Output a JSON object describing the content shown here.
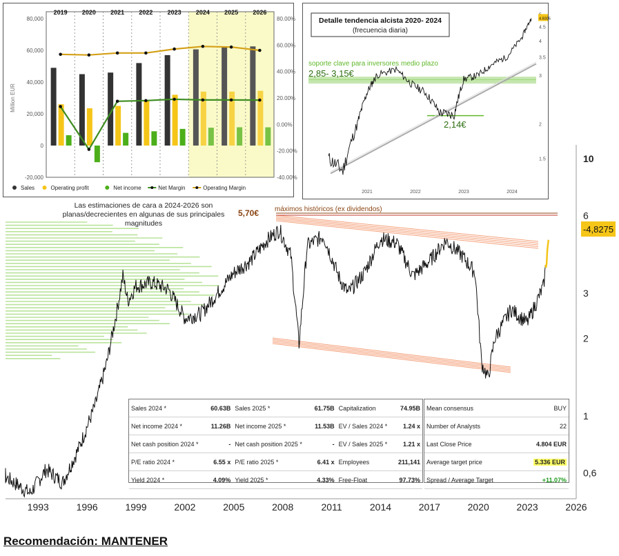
{
  "main_chart": {
    "x_tick_labels": [
      "1993",
      "1996",
      "1999",
      "2002",
      "2005",
      "2008",
      "2011",
      "2014",
      "2017",
      "2020",
      "2023",
      "2026"
    ],
    "y_tick_labels": [
      "0,6",
      "1",
      "2",
      "3",
      "6",
      "10"
    ],
    "last_price_label": "-4,8275",
    "ath_label": "5,70€",
    "ath_note": "máximos históricos (ex dividendos)",
    "note": "Las estimaciones de cara a 2024-2026 son planas/decrecientes en algunas de sus principales magnitudes",
    "recommendation": "Recomendación: MANTENER"
  },
  "chart_data": [
    {
      "type": "line",
      "title": "",
      "scale": "log",
      "x": [
        1990.0,
        1991.0,
        1992.5,
        1993.5,
        1994.5,
        1995.5,
        1996.5,
        1997.2,
        1997.8,
        1998.2,
        1998.5,
        1999.0,
        2000.0,
        2001.0,
        2002.0,
        2003.0,
        2004.0,
        2005.0,
        2006.0,
        2007.0,
        2007.8,
        2008.5,
        2009.0,
        2009.5,
        2010.5,
        2011.5,
        2012.0,
        2013.0,
        2014.0,
        2015.0,
        2016.0,
        2017.0,
        2018.0,
        2019.0,
        2019.8,
        2020.2,
        2020.6,
        2021.0,
        2022.0,
        2023.0,
        2024.0,
        2024.3
      ],
      "y": [
        0.6,
        0.58,
        0.5,
        0.62,
        0.55,
        0.75,
        1.1,
        1.6,
        2.5,
        3.5,
        2.8,
        3.2,
        3.3,
        3.1,
        2.4,
        2.5,
        3.0,
        3.6,
        4.0,
        4.8,
        5.3,
        4.2,
        1.9,
        4.6,
        5.0,
        3.4,
        3.0,
        3.6,
        4.9,
        4.7,
        3.5,
        4.0,
        4.8,
        4.2,
        3.6,
        1.6,
        1.4,
        2.0,
        2.6,
        2.3,
        3.2,
        4.83
      ],
      "ylim": [
        0.5,
        10
      ],
      "xlim": [
        1991,
        2026
      ]
    },
    {
      "type": "bar",
      "title": "",
      "categories": [
        "2019",
        "2020",
        "2021",
        "2022",
        "2023",
        "2024",
        "2025",
        "2026"
      ],
      "ylabel": "Million EUR",
      "ylim": [
        -20000,
        80000
      ],
      "y2lim": [
        -40,
        80
      ],
      "y_ticks": [
        "80,000",
        "60,000",
        "40,000",
        "20,000",
        "0",
        "-20,000"
      ],
      "y2_ticks": [
        "80.00%",
        "60.00%",
        "40.00%",
        "20.00%",
        "0.00%",
        "-20.00%",
        "-40.00%"
      ],
      "estimate_start": "2024",
      "series": [
        {
          "name": "Sales",
          "color": "#333333",
          "values": [
            49000,
            45000,
            46000,
            52000,
            57000,
            60630,
            61750,
            62500
          ]
        },
        {
          "name": "Operating profit",
          "color": "#f5c518",
          "values": [
            26000,
            23500,
            25000,
            28000,
            32000,
            34000,
            34000,
            34500
          ]
        },
        {
          "name": "Net income",
          "color": "#4caf1a",
          "values": [
            6500,
            -10500,
            8000,
            9000,
            10500,
            11260,
            11530,
            11500
          ]
        },
        {
          "name": "Net Margin",
          "color": "#3d8c20",
          "axis": "right",
          "values": [
            13.5,
            -18.9,
            17.5,
            18.0,
            19.0,
            18.5,
            18.5,
            18.4
          ]
        },
        {
          "name": "Operating Margin",
          "color": "#d4a017",
          "axis": "right",
          "values": [
            53,
            52.5,
            54,
            54,
            57,
            59,
            58.5,
            56
          ]
        }
      ]
    },
    {
      "type": "line",
      "title": "Detalle tendencia alcista 2020- 2024",
      "subtitle": "(frecuencia diaria)",
      "scale": "log",
      "x": [
        2020.2,
        2020.5,
        2020.8,
        2021.0,
        2021.2,
        2021.6,
        2021.9,
        2022.2,
        2022.5,
        2022.8,
        2023.0,
        2023.3,
        2023.6,
        2023.9,
        2024.2,
        2024.4
      ],
      "y": [
        1.5,
        1.35,
        2.0,
        2.6,
        3.0,
        3.15,
        2.8,
        2.6,
        2.2,
        2.15,
        2.9,
        3.0,
        3.3,
        3.5,
        4.1,
        4.83
      ],
      "x_ticks": [
        "2021",
        "2022",
        "2023",
        "2024"
      ],
      "y_ticks": [
        "1.5",
        "2",
        "3",
        "3.5",
        "4",
        "4.5",
        "5"
      ],
      "last_label": "4.8305",
      "support_label": "soporte clave para inversores medio plazo",
      "support_range": "2,85- 3,15€",
      "support_low": "2,14€"
    }
  ],
  "fin_table": [
    [
      "Sales 2024 *",
      "60.63B",
      "Sales 2025 *",
      "61.75B",
      "Capitalization",
      "74.95B"
    ],
    [
      "Net income 2024 *",
      "11.26B",
      "Net income 2025 *",
      "11.53B",
      "EV / Sales 2024 *",
      "1.24 x"
    ],
    [
      "Net cash position 2024 *",
      "-",
      "Net cash position 2025 *",
      "-",
      "EV / Sales 2025 *",
      "1.21 x"
    ],
    [
      "P/E ratio 2024 *",
      "6.55 x",
      "P/E ratio 2025 *",
      "6.41 x",
      "Employees",
      "211,141"
    ],
    [
      "Yield 2024 *",
      "4.09%",
      "Yield 2025 *",
      "4.33%",
      "Free-Float",
      "97.73%"
    ]
  ],
  "consensus": {
    "rows": [
      {
        "label": "Mean consensus",
        "value": "BUY"
      },
      {
        "label": "Number of Analysts",
        "value": "22"
      },
      {
        "label": "Last Close Price",
        "value": "4.804 EUR"
      },
      {
        "label": "Average target price",
        "value": "5.336 EUR"
      },
      {
        "label": "Spread / Average Target",
        "value": "+11.07%"
      }
    ]
  },
  "colors": {
    "accent": "#f5c518",
    "support": "#5fb829",
    "ath": "#8b4513",
    "channel": "#f4a07a"
  }
}
